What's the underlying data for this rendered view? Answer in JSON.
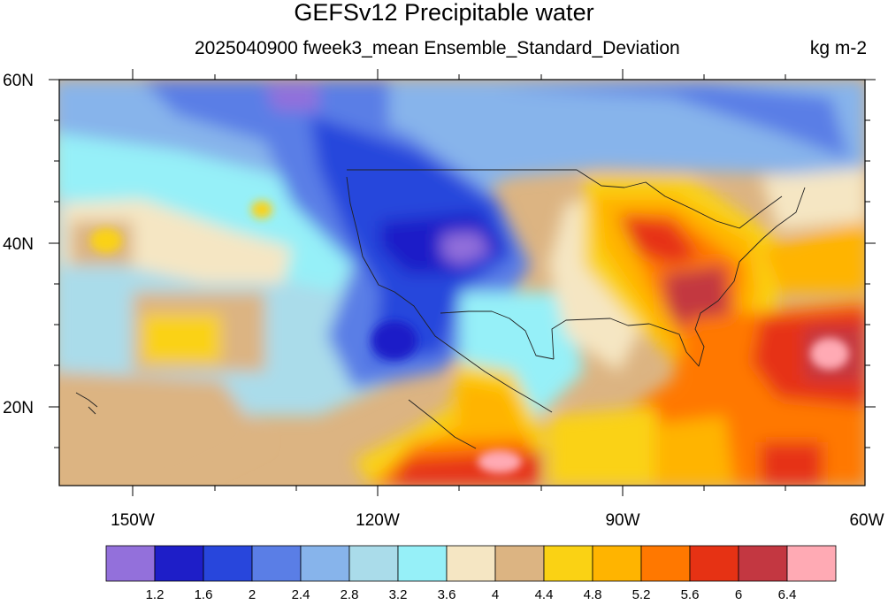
{
  "title": "GEFSv12 Precipitable water",
  "subtitle": "2025040900 fweek3_mean Ensemble_Standard_Deviation",
  "units": "kg m-2",
  "lat_labels": [
    "60N",
    "40N",
    "20N"
  ],
  "lon_labels": [
    "150W",
    "120W",
    "90W",
    "60W"
  ],
  "colorbar": {
    "colors": [
      "#9370db",
      "#1e1ec8",
      "#2846dc",
      "#5a7ee6",
      "#87b4eb",
      "#aadcea",
      "#96f0f8",
      "#f5e6c3",
      "#dcb482",
      "#fad214",
      "#ffb400",
      "#ff7800",
      "#e63214",
      "#c33741",
      "#ffaab4"
    ],
    "labels": [
      "1.2",
      "1.6",
      "2",
      "2.4",
      "2.8",
      "3.2",
      "3.6",
      "4",
      "4.4",
      "4.8",
      "5.2",
      "5.6",
      "6",
      "6.4"
    ]
  },
  "chart_data": {
    "type": "heatmap",
    "title": "GEFSv12 Precipitable water",
    "variable": "Precipitable water ensemble standard deviation",
    "units": "kg m-2",
    "lat_range": [
      10,
      60
    ],
    "lon_range": [
      -160,
      -60
    ],
    "lat_ticks": [
      60,
      40,
      20
    ],
    "lon_ticks": [
      -150,
      -120,
      -90,
      -60
    ],
    "contour_levels": [
      1.2,
      1.6,
      2,
      2.4,
      2.8,
      3.2,
      3.6,
      4,
      4.4,
      4.8,
      5.2,
      5.6,
      6,
      6.4
    ]
  }
}
